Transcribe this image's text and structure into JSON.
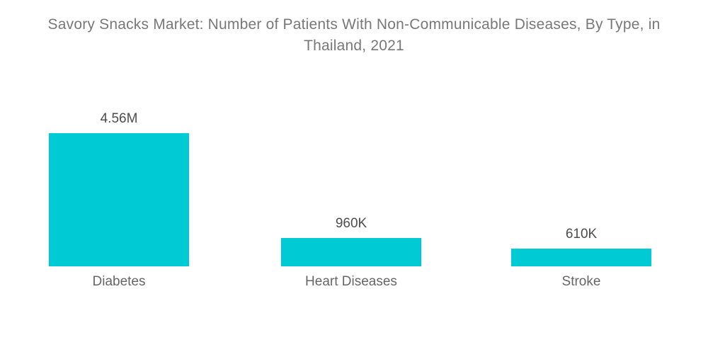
{
  "title": "Savory Snacks Market: Number of Patients With Non-Communicable Diseases, By Type, in Thailand, 2021",
  "chart_data": {
    "type": "bar",
    "title": "Savory Snacks Market: Number of Patients With Non-Communicable Diseases, By Type, in Thailand, 2021",
    "categories": [
      "Diabetes",
      "Heart Diseases",
      "Stroke"
    ],
    "values": [
      4560000,
      960000,
      610000
    ],
    "value_labels": [
      "4.56M",
      "960K",
      "610K"
    ],
    "xlabel": "",
    "ylabel": "",
    "ylim": [
      0,
      4560000
    ],
    "grid": false,
    "legend": false,
    "bar_color": "#00CBD4",
    "title_color": "#787878",
    "value_label_color": "#4d4d4d",
    "category_label_color": "#666666",
    "background_color": "#ffffff"
  }
}
